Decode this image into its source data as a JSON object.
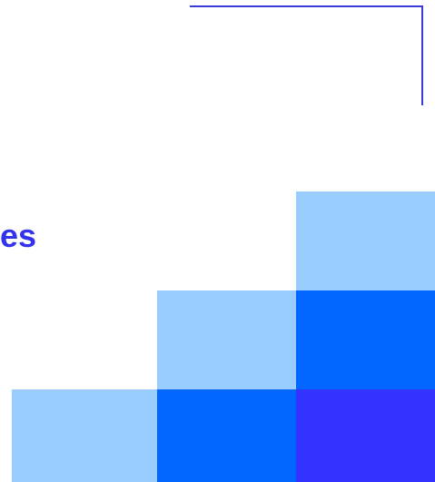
{
  "slide": {
    "heading_fragment": "es"
  },
  "colors": {
    "heading": "#3333ee",
    "frame_line": "#3a3ad6",
    "block_light": "#99ccff",
    "block_mid": "#0066ff",
    "block_deep": "#3333ff"
  }
}
